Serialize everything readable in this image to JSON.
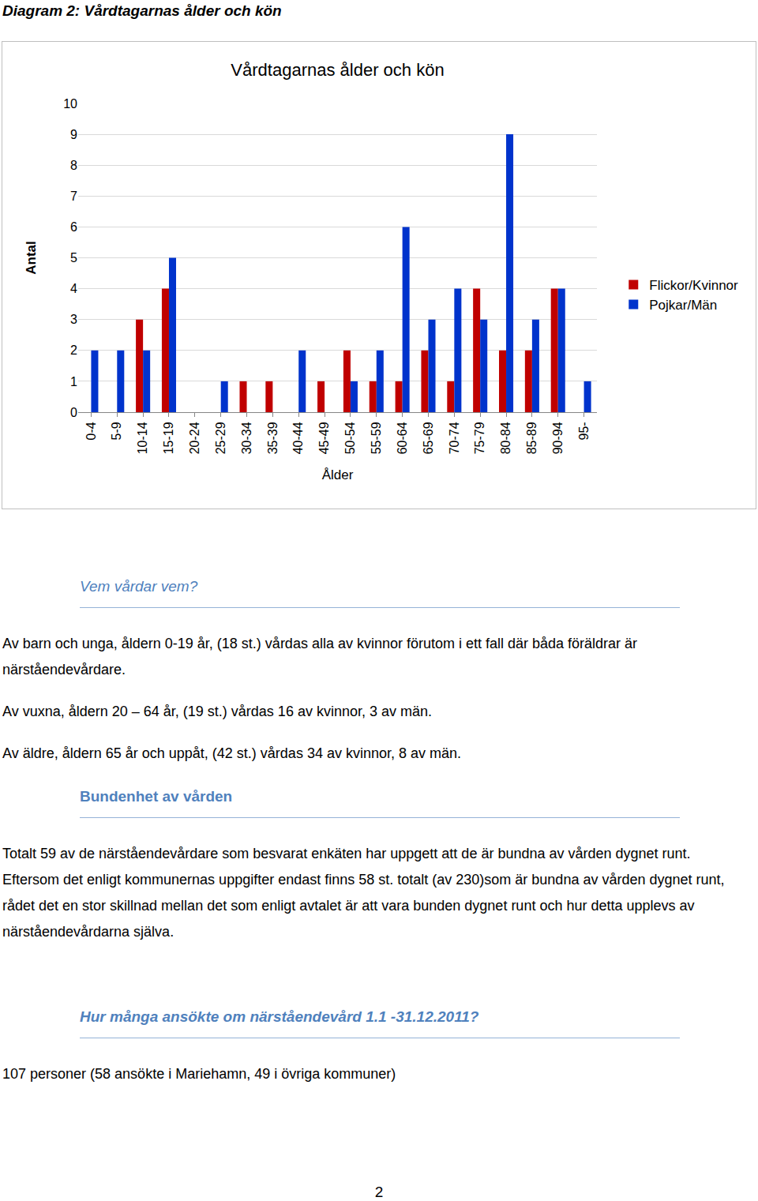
{
  "caption": "Diagram 2: Vårdtagarnas ålder och kön",
  "chart_data": {
    "type": "bar",
    "title": "Vårdtagarnas ålder och kön",
    "x_label": "Ålder",
    "y_label": "Antal",
    "categories": [
      "0-4",
      "5-9",
      "10-14",
      "15-19",
      "20-24",
      "25-29",
      "30-34",
      "35-39",
      "40-44",
      "45-49",
      "50-54",
      "55-59",
      "60-64",
      "65-69",
      "70-74",
      "75-79",
      "80-84",
      "85-89",
      "90-94",
      "95-"
    ],
    "series": [
      {
        "name": "Flickor/Kvinnor",
        "color": "#c00000",
        "values": [
          0,
          0,
          3,
          4,
          0,
          0,
          1,
          1,
          0,
          1,
          2,
          1,
          1,
          2,
          1,
          4,
          2,
          2,
          4,
          0
        ]
      },
      {
        "name": "Pojkar/Män",
        "color": "#0033cc",
        "values": [
          2,
          2,
          2,
          5,
          0,
          1,
          0,
          0,
          2,
          0,
          1,
          2,
          6,
          3,
          4,
          3,
          9,
          3,
          4,
          1
        ]
      }
    ],
    "ylim": [
      0,
      10
    ],
    "yticks": [
      0,
      1,
      2,
      3,
      4,
      5,
      6,
      7,
      8,
      9,
      10
    ],
    "grid": true,
    "legend": "right"
  },
  "sections": [
    {
      "heading": "Vem vårdar vem?",
      "paragraphs": [
        "Av barn och unga, åldern 0-19 år, (18 st.) vårdas alla av kvinnor förutom i ett fall där båda föräldrar är närståendevårdare.",
        "Av vuxna, åldern 20 – 64 år, (19 st.) vårdas 16 av kvinnor, 3 av män.",
        "Av äldre, åldern 65 år och uppåt, (42 st.) vårdas 34 av kvinnor, 8 av män."
      ]
    },
    {
      "heading": "Bundenhet av vården",
      "paragraphs": [
        "Totalt 59 av de närståendevårdare som besvarat enkäten har uppgett att de är bundna av vården dygnet runt. Eftersom det enligt kommunernas uppgifter endast finns 58 st. totalt (av 230)som är bundna av vården dygnet runt, rådet det en stor skillnad mellan det som enligt avtalet är att vara bunden dygnet runt och hur detta upplevs av närståendevårdarna själva."
      ]
    },
    {
      "heading": "Hur många ansökte om närståendevård 1.1 -31.12.2011?",
      "paragraphs": [
        "107 personer (58 ansökte i Mariehamn, 49 i övriga kommuner)"
      ]
    }
  ],
  "page_number": 2
}
